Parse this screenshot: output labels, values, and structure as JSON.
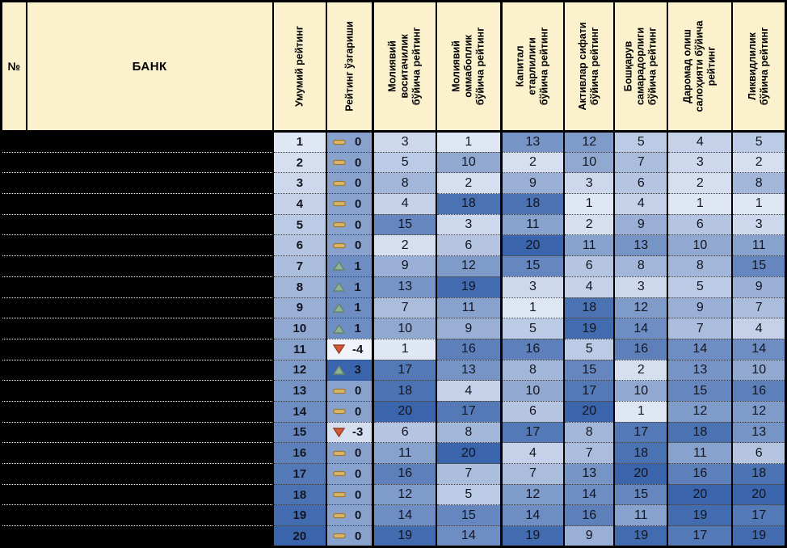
{
  "table": {
    "columns": [
      {
        "id": "row_number",
        "label": "№"
      },
      {
        "id": "bank",
        "label": "БАНК"
      },
      {
        "id": "overall_rating",
        "label": "Умумий рейтинг"
      },
      {
        "id": "rating_change",
        "label": "Рейтинг ўзгариши"
      },
      {
        "id": "fin_intermediation",
        "label": "Молиявий\nвоситачилик\nбўйича рейтинг"
      },
      {
        "id": "fin_accessibility",
        "label": "Молиявий\nоммабоплик\nбўйича рейтинг"
      },
      {
        "id": "capital_adequacy",
        "label": "Капитал\nетарлилиги\nбўйича рейтинг"
      },
      {
        "id": "asset_quality",
        "label": "Активлар сифати\nбўйича рейтинг"
      },
      {
        "id": "mgmt_efficiency",
        "label": "Бошқарув\nсамарадорлиги\nбўйича рейтинг"
      },
      {
        "id": "income_capacity",
        "label": "Даромад олиш\nсалоҳияти бўйича\nрейтинг"
      },
      {
        "id": "liquidity",
        "label": "Ликвидлилик\nбўйича рейтинг"
      }
    ],
    "rows": [
      {
        "overall": 1,
        "change": 0,
        "scores": [
          3,
          1,
          13,
          12,
          5,
          4,
          5
        ]
      },
      {
        "overall": 2,
        "change": 0,
        "scores": [
          5,
          10,
          2,
          10,
          7,
          3,
          2
        ]
      },
      {
        "overall": 3,
        "change": 0,
        "scores": [
          8,
          2,
          9,
          3,
          6,
          2,
          8
        ]
      },
      {
        "overall": 4,
        "change": 0,
        "scores": [
          4,
          18,
          18,
          1,
          4,
          1,
          1
        ]
      },
      {
        "overall": 5,
        "change": 0,
        "scores": [
          15,
          3,
          11,
          2,
          9,
          6,
          3
        ]
      },
      {
        "overall": 6,
        "change": 0,
        "scores": [
          2,
          6,
          20,
          11,
          13,
          10,
          11
        ]
      },
      {
        "overall": 7,
        "change": 1,
        "scores": [
          9,
          12,
          15,
          6,
          8,
          8,
          15
        ]
      },
      {
        "overall": 8,
        "change": 1,
        "scores": [
          13,
          19,
          3,
          4,
          3,
          5,
          9
        ]
      },
      {
        "overall": 9,
        "change": 1,
        "scores": [
          7,
          11,
          1,
          18,
          12,
          9,
          7
        ]
      },
      {
        "overall": 10,
        "change": 1,
        "scores": [
          10,
          9,
          5,
          19,
          14,
          7,
          4
        ]
      },
      {
        "overall": 11,
        "change": -4,
        "scores": [
          1,
          16,
          16,
          5,
          16,
          14,
          14
        ]
      },
      {
        "overall": 12,
        "change": 3,
        "scores": [
          17,
          13,
          8,
          15,
          2,
          13,
          10
        ]
      },
      {
        "overall": 13,
        "change": 0,
        "scores": [
          18,
          4,
          10,
          17,
          10,
          15,
          16
        ]
      },
      {
        "overall": 14,
        "change": 0,
        "scores": [
          20,
          17,
          6,
          20,
          1,
          12,
          12
        ]
      },
      {
        "overall": 15,
        "change": -3,
        "scores": [
          6,
          8,
          17,
          8,
          17,
          18,
          13
        ]
      },
      {
        "overall": 16,
        "change": 0,
        "scores": [
          11,
          20,
          4,
          7,
          18,
          11,
          6
        ]
      },
      {
        "overall": 17,
        "change": 0,
        "scores": [
          16,
          7,
          7,
          13,
          20,
          16,
          18
        ]
      },
      {
        "overall": 18,
        "change": 0,
        "scores": [
          12,
          5,
          12,
          14,
          15,
          20,
          20
        ]
      },
      {
        "overall": 19,
        "change": 0,
        "scores": [
          14,
          15,
          14,
          16,
          11,
          19,
          17
        ]
      },
      {
        "overall": 20,
        "change": 0,
        "scores": [
          19,
          14,
          19,
          9,
          19,
          17,
          19
        ]
      }
    ],
    "score_domain": {
      "min": 1,
      "max": 20
    },
    "change_domain": {
      "min": -4,
      "max": 3
    }
  },
  "colors": {
    "header_bg": "#FBF1CD",
    "redacted": "#000000",
    "score_scale_light": "#DFE6F4",
    "score_scale_dark": "#3A64AB",
    "change_scale_light": "#F0F3FA",
    "change_scale_dark": "#3A64AB",
    "icon_up_fill": "#8FB397",
    "icon_up_stroke": "#64856D",
    "icon_down_fill": "#CD5B39",
    "icon_down_stroke": "#9A3D20",
    "icon_dash_fill": "#DCB569",
    "icon_dash_stroke": "#9C7E33"
  },
  "icons": {
    "up": "triangle-up-icon",
    "down": "triangle-down-icon",
    "flat": "dash-icon"
  }
}
